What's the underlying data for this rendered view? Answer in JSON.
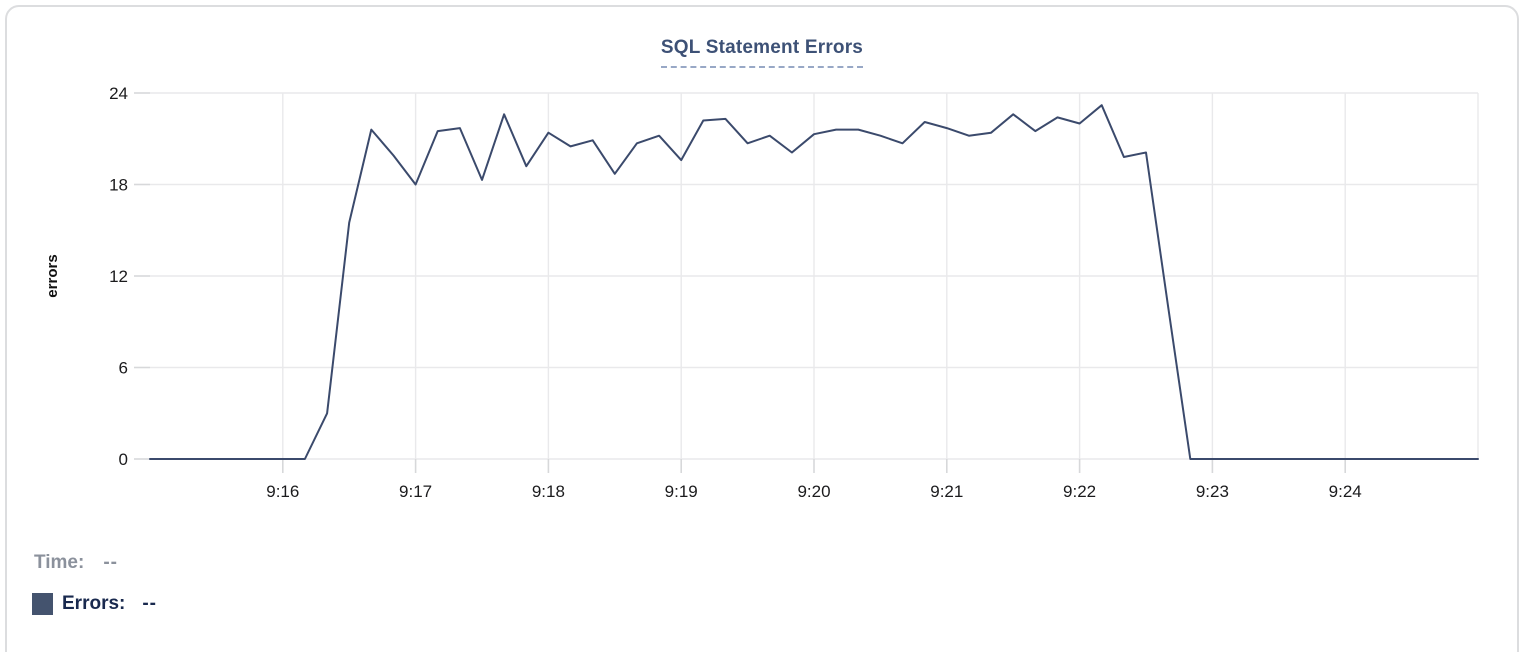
{
  "chart_data": {
    "type": "line",
    "title": "SQL Statement Errors",
    "xlabel": "",
    "ylabel": "errors",
    "ylim": [
      0,
      24
    ],
    "yticks": [
      0,
      6,
      12,
      18,
      24
    ],
    "x_axis": {
      "start_time": "9:15:00",
      "end_time": "9:25:00",
      "interval_seconds": 10,
      "tick_labels": [
        "9:16",
        "9:17",
        "9:18",
        "9:19",
        "9:20",
        "9:21",
        "9:22",
        "9:23",
        "9:24"
      ],
      "tick_minute_offsets": [
        1,
        2,
        3,
        4,
        5,
        6,
        7,
        8,
        9
      ],
      "grid_minute_offsets": [
        1,
        2,
        3,
        4,
        5,
        6,
        7,
        8,
        9,
        10
      ]
    },
    "series": [
      {
        "name": "Errors",
        "color": "#3b4a6c",
        "values": [
          0,
          0,
          0,
          0,
          0,
          0,
          0,
          0,
          3,
          15.5,
          21.6,
          19.9,
          18,
          21.5,
          21.7,
          18.3,
          22.6,
          19.2,
          21.4,
          20.5,
          20.9,
          18.7,
          20.7,
          21.2,
          19.6,
          22.2,
          22.3,
          20.7,
          21.2,
          20.1,
          21.3,
          21.6,
          21.6,
          21.2,
          20.7,
          22.1,
          21.7,
          21.2,
          21.4,
          22.6,
          21.5,
          22.4,
          22,
          23.2,
          19.8,
          20.1,
          10,
          0,
          0,
          0,
          0,
          0,
          0,
          0,
          0,
          0,
          0,
          0,
          0,
          0,
          0
        ]
      }
    ],
    "grid": true,
    "legend_position": "bottom-left"
  },
  "legend": {
    "time_label": "Time:",
    "time_value": "--",
    "errors_label": "Errors:",
    "errors_value": "--",
    "swatch_color": "#44536e"
  },
  "colors": {
    "line": "#3b4a6c",
    "title_text": "#3d5176",
    "title_underline": "#98a8c6",
    "gridline": "#e9e9eb",
    "tick_mark": "#d7d8da",
    "axis_text": "#1b1b1d",
    "time_label_text": "#8b919c",
    "errors_label_text": "#19294e",
    "card_border": "#dcdddf"
  }
}
